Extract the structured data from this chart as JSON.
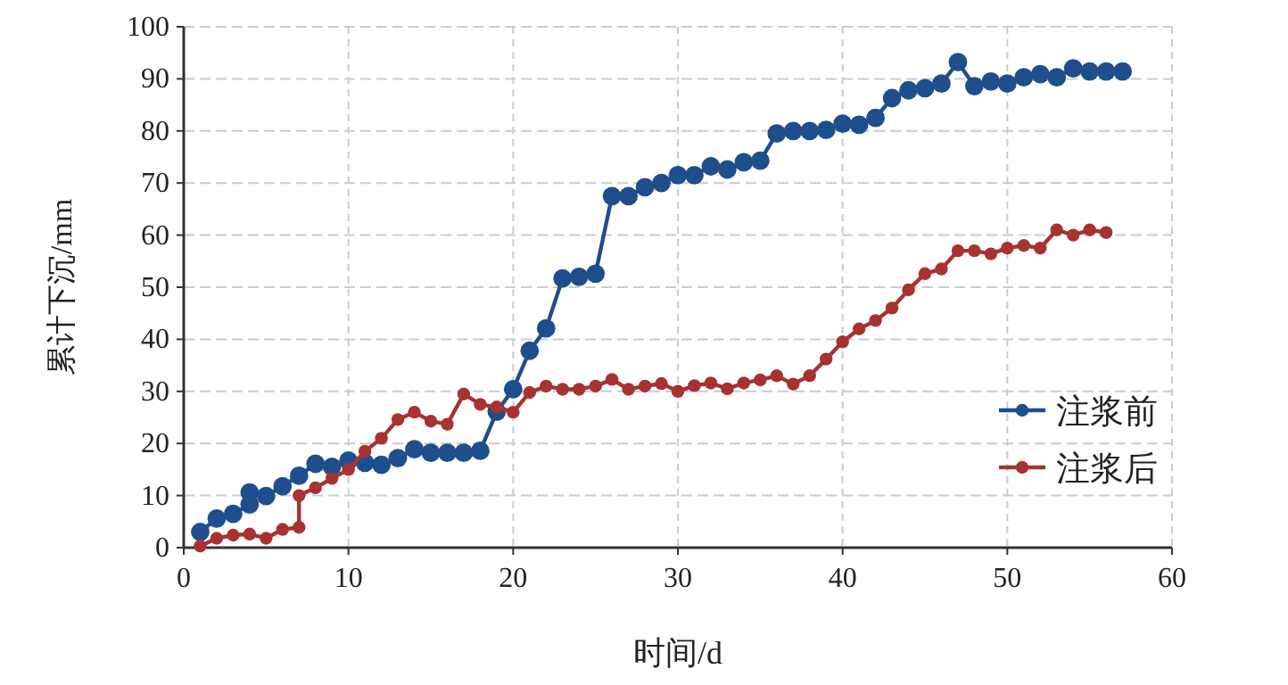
{
  "chart_data": {
    "type": "line",
    "xlabel": "时间/d",
    "ylabel": "累计下沉/mm",
    "xlim": [
      0,
      60
    ],
    "ylim": [
      0,
      100
    ],
    "xticks": [
      0,
      10,
      20,
      30,
      40,
      50,
      60
    ],
    "yticks": [
      0,
      10,
      20,
      30,
      40,
      50,
      60,
      70,
      80,
      90,
      100
    ],
    "grid": true,
    "legend": "right",
    "marker": "circle",
    "line_style": "solid",
    "series": [
      {
        "name": "注浆前",
        "color": "#1f4e8c",
        "x": [
          1,
          2,
          3,
          4,
          4,
          5,
          6,
          7,
          8,
          9,
          10,
          11,
          12,
          13,
          14,
          15,
          16,
          17,
          18,
          19,
          20,
          21,
          22,
          23,
          24,
          25,
          26,
          27,
          28,
          29,
          30,
          31,
          32,
          33,
          34,
          35,
          36,
          37,
          38,
          39,
          40,
          41,
          42,
          43,
          44,
          45,
          46,
          47,
          48,
          49,
          50,
          51,
          52,
          53,
          54,
          55,
          56,
          57
        ],
        "values": [
          3,
          5.6,
          6.5,
          8.3,
          10.6,
          9.9,
          11.8,
          13.8,
          16.1,
          15.5,
          16.7,
          16.3,
          15.9,
          17.2,
          18.9,
          18.2,
          18.2,
          18.2,
          18.6,
          26.1,
          30.4,
          37.8,
          42.1,
          51.7,
          52,
          52.6,
          67.5,
          67.5,
          69.2,
          70,
          71.5,
          71.5,
          73.2,
          72.6,
          74,
          74.3,
          79.5,
          80,
          80,
          80.2,
          81.4,
          81.2,
          82.5,
          86.3,
          87.8,
          88.2,
          89.1,
          93.2,
          88.6,
          89.5,
          89.1,
          90.3,
          90.9,
          90.3,
          92,
          91.4,
          91.4,
          91.4
        ]
      },
      {
        "name": "注浆后",
        "color": "#a83232",
        "x": [
          1,
          2,
          3,
          4,
          5,
          6,
          7,
          7,
          8,
          9,
          10,
          11,
          12,
          13,
          14,
          15,
          16,
          17,
          18,
          19,
          20,
          21,
          22,
          23,
          24,
          25,
          26,
          27,
          28,
          29,
          30,
          31,
          32,
          33,
          34,
          35,
          36,
          37,
          38,
          39,
          40,
          41,
          42,
          43,
          44,
          45,
          46,
          47,
          48,
          49,
          50,
          51,
          52,
          53,
          54,
          55,
          56
        ],
        "values": [
          0.3,
          1.8,
          2.4,
          2.6,
          1.8,
          3.5,
          3.9,
          10,
          11.5,
          13.3,
          15,
          18.5,
          21,
          24.6,
          26,
          24.3,
          23.7,
          29.5,
          27.5,
          27,
          26,
          29.8,
          31,
          30.4,
          30.4,
          31,
          32.3,
          30.4,
          31,
          31.5,
          30,
          31.1,
          31.6,
          30.5,
          31.6,
          32.2,
          33,
          31.4,
          33,
          36.2,
          39.5,
          42,
          43.6,
          46,
          49.5,
          52.6,
          53.5,
          57,
          57,
          56.4,
          57.5,
          58,
          57.5,
          61,
          60,
          61,
          60.5
        ]
      }
    ]
  }
}
